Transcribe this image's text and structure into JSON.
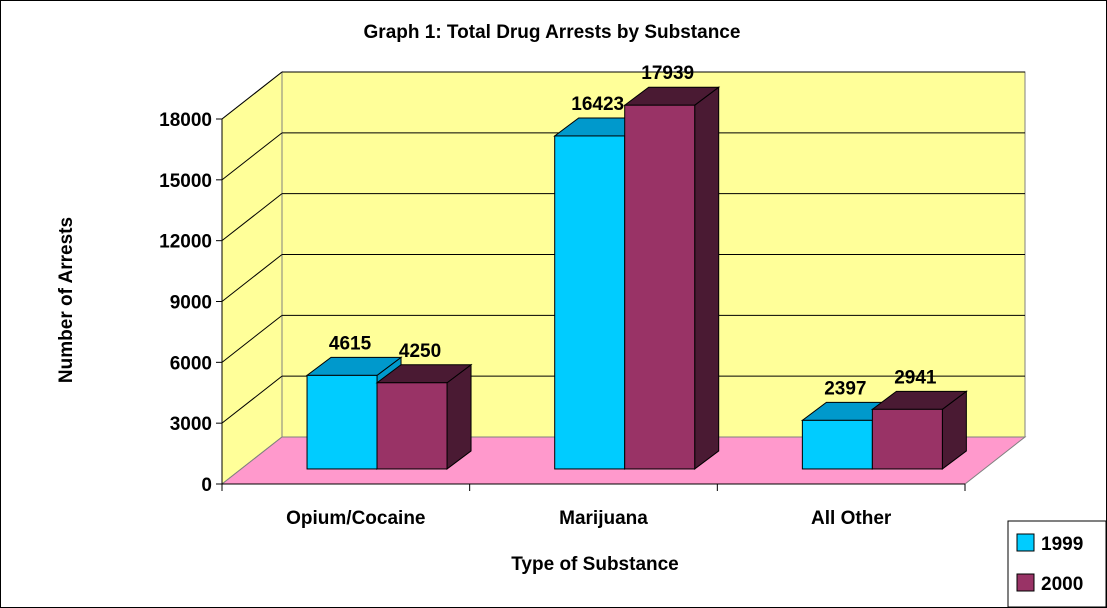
{
  "chart_data": {
    "type": "bar",
    "title": "Graph 1: Total Drug Arrests by Substance",
    "xlabel": "Type of Substance",
    "ylabel": "Number of Arrests",
    "categories": [
      "Opium/Cocaine",
      "Marijuana",
      "All Other"
    ],
    "series": [
      {
        "name": "1999",
        "values": [
          4615,
          16423,
          2397
        ],
        "color": "#00CCFF"
      },
      {
        "name": "2000",
        "values": [
          4250,
          17939,
          2941
        ],
        "color": "#993366"
      }
    ],
    "y_ticks": [
      "0",
      "3000",
      "6000",
      "9000",
      "12000",
      "15000",
      "18000"
    ],
    "data_labels": [
      [
        "4615",
        "16423",
        "2397"
      ],
      [
        "4250",
        "17939",
        "2941"
      ]
    ],
    "ylim": [
      0,
      18000
    ],
    "grid": true,
    "legend": "bottom-right",
    "colors": {
      "wall": "#FFFF99",
      "floor": "#FF99CC",
      "side_1999": "#0099CC",
      "side_2000": "#4A1A33"
    }
  }
}
